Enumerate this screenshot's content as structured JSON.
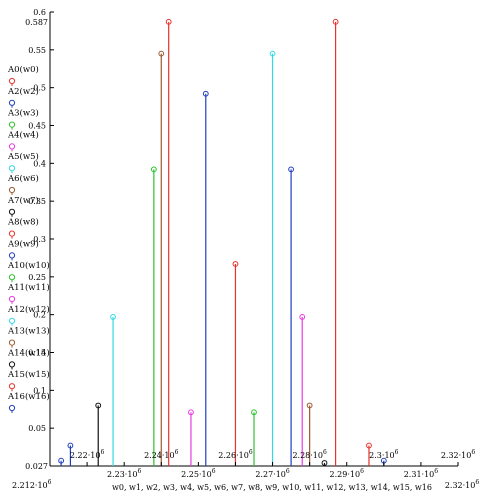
{
  "chart_data": {
    "type": "stem",
    "y_axis": {
      "range": [
        0,
        0.6
      ],
      "tick_labels": [
        "0.05",
        "0.1",
        "0.15",
        "0.2",
        "0.25",
        "0.3",
        "0.35",
        "0.4",
        "0.45",
        "0.5",
        "0.55",
        "0.6"
      ],
      "top_marker": "0.587",
      "bottom_marker": "0.027"
    },
    "x_axis": {
      "range": [
        2210000.0,
        2320000.0
      ],
      "upper_tick_labels": [
        {
          "base": "2.22·10",
          "exp": "6",
          "x": 2220000.0
        },
        {
          "base": "2.24·10",
          "exp": "6",
          "x": 2240000.0
        },
        {
          "base": "2.26·10",
          "exp": "6",
          "x": 2260000.0
        },
        {
          "base": "2.28·10",
          "exp": "6",
          "x": 2280000.0
        },
        {
          "base": "2.3·10",
          "exp": "6",
          "x": 2300000.0
        },
        {
          "base": "2.32·10",
          "exp": "6",
          "x": 2320000.0
        }
      ],
      "lower_tick_labels": [
        {
          "base": "2.23·10",
          "exp": "6",
          "x": 2230000.0
        },
        {
          "base": "2.25·10",
          "exp": "6",
          "x": 2250000.0
        },
        {
          "base": "2.27·10",
          "exp": "6",
          "x": 2270000.0
        },
        {
          "base": "2.29·10",
          "exp": "6",
          "x": 2290000.0
        },
        {
          "base": "2.31·10",
          "exp": "6",
          "x": 2310000.0
        }
      ],
      "left_marker": {
        "base": "2.212·10",
        "exp": "6"
      },
      "right_marker": {
        "base": "2.32·10",
        "exp": "6"
      },
      "label": "w0, w1, w2, w3, w4, w5, w6, w7, w8, w9, w10, w11, w12, w13, w14, w15, w16"
    },
    "series": [
      {
        "name": "A0(w0)",
        "color": "#e8322b",
        "x": 2287000.0,
        "y": 0.587
      },
      {
        "name": "A2(w2)",
        "color": "#1f3fbf",
        "x": 2215500.0,
        "y": 0.027
      },
      {
        "name": "A3(w3)",
        "color": "#2ec22e",
        "x": 2238000.0,
        "y": 0.392
      },
      {
        "name": "A4(w4)",
        "color": "#e83ce0",
        "x": 2248000.0,
        "y": 0.071
      },
      {
        "name": "A5(w5)",
        "color": "#33d9e6",
        "x": 2227000.0,
        "y": 0.197
      },
      {
        "name": "A6(w6)",
        "color": "#9c5a2e",
        "x": 2240000.0,
        "y": 0.545
      },
      {
        "name": "A7(w7)",
        "color": "#111111",
        "x": 2223000.0,
        "y": 0.08
      },
      {
        "name": "A8(w8)",
        "color": "#e8322b",
        "x": 2242000.0,
        "y": 0.587
      },
      {
        "name": "A9(w9)",
        "color": "#1f3fbf",
        "x": 2252000.0,
        "y": 0.492
      },
      {
        "name": "A10(w10)",
        "color": "#2ec22e",
        "x": 2265000.0,
        "y": 0.071
      },
      {
        "name": "A11(w11)",
        "color": "#e83ce0",
        "x": 2278000.0,
        "y": 0.197
      },
      {
        "name": "A12(w12)",
        "color": "#33d9e6",
        "x": 2270000.0,
        "y": 0.545
      },
      {
        "name": "A13(w13)",
        "color": "#9c5a2e",
        "x": 2280000.0,
        "y": 0.08
      },
      {
        "name": "A14(w14)",
        "color": "#111111",
        "x": 2284000.0,
        "y": 0.004
      },
      {
        "name": "A15(w15)",
        "color": "#e8322b",
        "x": 2260000.0,
        "y": 0.267
      },
      {
        "name": "A16(w16)",
        "color": "#1f3fbf",
        "x": 2275000.0,
        "y": 0.392
      }
    ],
    "extra_stems": [
      {
        "color": "#1f3fbf",
        "x": 2213000.0,
        "y": 0.007
      },
      {
        "color": "#e8322b",
        "x": 2296000.0,
        "y": 0.027
      },
      {
        "color": "#1f3fbf",
        "x": 2300000.0,
        "y": 0.007
      }
    ]
  }
}
